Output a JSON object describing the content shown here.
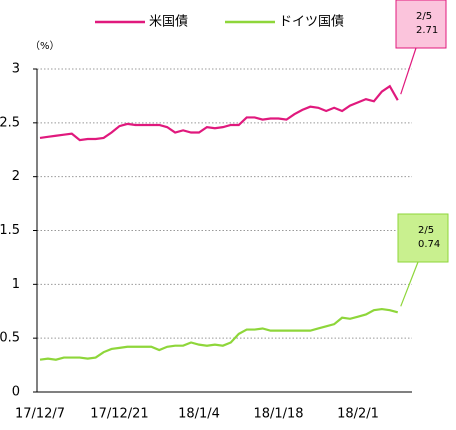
{
  "chart_data": {
    "type": "line",
    "y_axis_label": "（%）",
    "categories": [
      "17/12/7",
      null,
      null,
      null,
      null,
      null,
      null,
      null,
      null,
      null,
      "17/12/21",
      null,
      null,
      null,
      null,
      null,
      null,
      null,
      null,
      null,
      "18/1/4",
      null,
      null,
      null,
      null,
      null,
      null,
      null,
      null,
      null,
      "18/1/18",
      null,
      null,
      null,
      null,
      null,
      null,
      null,
      null,
      null,
      "18/2/1",
      null,
      null,
      null,
      null,
      null
    ],
    "series": [
      {
        "name": "米国債",
        "color": "#e0197d",
        "values": [
          2.36,
          2.37,
          2.38,
          2.39,
          2.4,
          2.34,
          2.35,
          2.35,
          2.36,
          2.41,
          2.47,
          2.49,
          2.48,
          2.48,
          2.48,
          2.48,
          2.46,
          2.41,
          2.43,
          2.41,
          2.41,
          2.46,
          2.45,
          2.46,
          2.48,
          2.48,
          2.55,
          2.55,
          2.53,
          2.54,
          2.54,
          2.53,
          2.58,
          2.62,
          2.65,
          2.64,
          2.61,
          2.64,
          2.61,
          2.66,
          2.69,
          2.72,
          2.7,
          2.79,
          2.84,
          2.71
        ]
      },
      {
        "name": "ドイツ国債",
        "color": "#8ed63a",
        "values": [
          0.3,
          0.31,
          0.3,
          0.32,
          0.32,
          0.32,
          0.31,
          0.32,
          0.37,
          0.4,
          0.41,
          0.42,
          0.42,
          0.42,
          0.42,
          0.39,
          0.42,
          0.43,
          0.43,
          0.46,
          0.44,
          0.43,
          0.44,
          0.43,
          0.46,
          0.54,
          0.58,
          0.58,
          0.59,
          0.57,
          0.57,
          0.57,
          0.57,
          0.57,
          0.57,
          0.59,
          0.61,
          0.63,
          0.69,
          0.68,
          0.7,
          0.72,
          0.76,
          0.77,
          0.76,
          0.74
        ]
      }
    ],
    "annotations": [
      {
        "date": "2/5",
        "label": "2.71",
        "fill": "#fbc4dc",
        "stroke": "#e0197d"
      },
      {
        "date": "2/5",
        "label": "0.74",
        "fill": "#c9f08f",
        "stroke": "#8ed63a"
      }
    ],
    "ylim": [
      0,
      3
    ],
    "yticks": [
      0,
      0.5,
      1,
      1.5,
      2,
      2.5,
      3
    ],
    "grid": true,
    "grid_style": "dotted"
  }
}
